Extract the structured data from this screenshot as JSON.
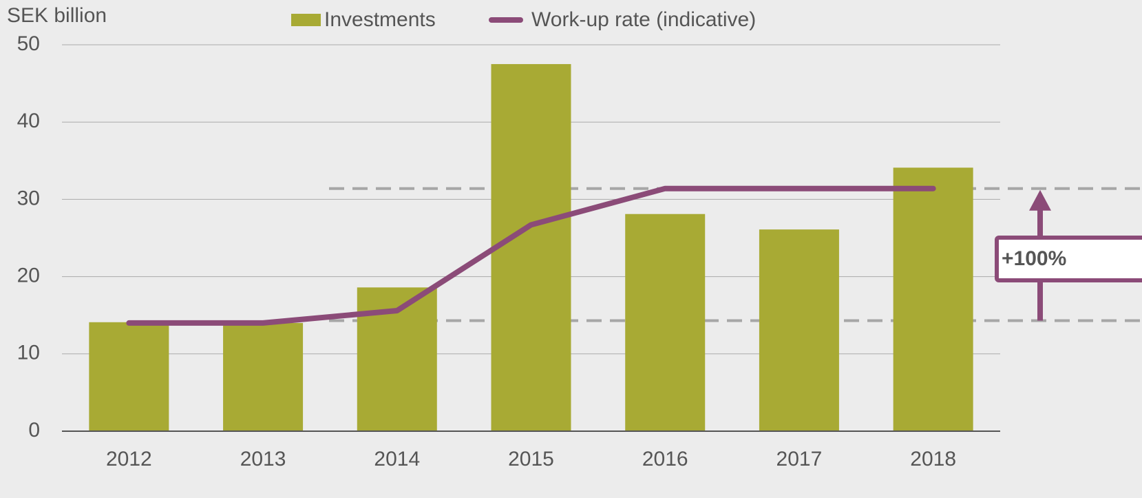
{
  "chart_data": {
    "type": "bar",
    "y_label": "SEK billion",
    "categories": [
      "2012",
      "2013",
      "2014",
      "2015",
      "2016",
      "2017",
      "2018"
    ],
    "series": [
      {
        "name": "Investments",
        "type": "bar",
        "color": "#a8aa34",
        "values": [
          14.1,
          14,
          18.6,
          47.5,
          28.1,
          26.1,
          34.1
        ]
      },
      {
        "name": "Work-up rate (indicative)",
        "type": "line",
        "color": "#8b4b78",
        "values": [
          14,
          14,
          15.6,
          26.7,
          31.4,
          31.4,
          31.4
        ]
      }
    ],
    "reference_lines": [
      31.4,
      14.3
    ],
    "annotation": "+100%",
    "ylim": [
      0,
      50
    ],
    "yticks": [
      0,
      10,
      20,
      30,
      40,
      50
    ],
    "grid": true
  }
}
